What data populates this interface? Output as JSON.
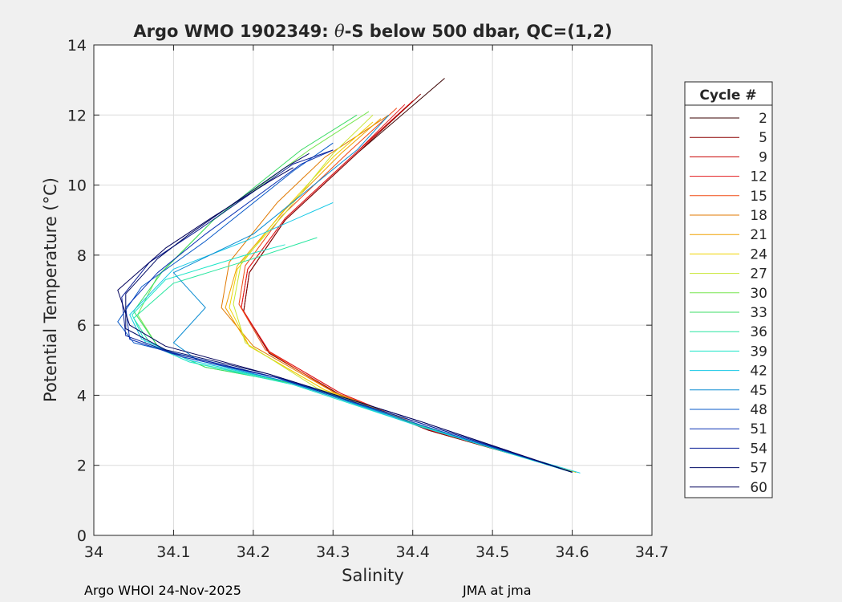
{
  "chart_data": {
    "type": "line",
    "title_pre": "Argo WMO 1902349: ",
    "title_theta": "θ",
    "title_post": "-S below 500 dbar,  QC=(1,2)",
    "xlabel": "Salinity",
    "ylabel": "Potential Temperature (°C)",
    "xlim": [
      34.0,
      34.7
    ],
    "ylim": [
      0,
      14
    ],
    "xticks": [
      "34",
      "34.1",
      "34.2",
      "34.3",
      "34.4",
      "34.5",
      "34.6",
      "34.7"
    ],
    "xtick_values": [
      34.0,
      34.1,
      34.2,
      34.3,
      34.4,
      34.5,
      34.6,
      34.7
    ],
    "yticks": [
      "0",
      "2",
      "4",
      "6",
      "8",
      "10",
      "12",
      "14"
    ],
    "ytick_values": [
      0,
      2,
      4,
      6,
      8,
      10,
      12,
      14
    ],
    "grid": true,
    "legend": {
      "title": "Cycle #",
      "placement": "right",
      "entries": [
        "2",
        "5",
        "9",
        "12",
        "15",
        "18",
        "21",
        "24",
        "27",
        "30",
        "33",
        "36",
        "39",
        "42",
        "45",
        "48",
        "51",
        "54",
        "57",
        "60"
      ],
      "colors": [
        "#3a0000",
        "#8b0000",
        "#c80000",
        "#e31a1c",
        "#f04a14",
        "#e07800",
        "#f0a000",
        "#f0d200",
        "#c8e632",
        "#78e650",
        "#3cdc64",
        "#28e6a0",
        "#1ee6c8",
        "#14c8e6",
        "#0a8cd2",
        "#0a5ac8",
        "#0a32b4",
        "#0a1e96",
        "#000a64",
        "#00005a"
      ]
    },
    "series": [
      {
        "name": "2",
        "color": "#3a0000",
        "points": [
          [
            34.605,
            1.8
          ],
          [
            34.42,
            3.0
          ],
          [
            34.31,
            4.0
          ],
          [
            34.22,
            5.2
          ],
          [
            34.188,
            6.4
          ],
          [
            34.195,
            7.5
          ],
          [
            34.24,
            9.0
          ],
          [
            34.33,
            10.9
          ],
          [
            34.44,
            13.05
          ]
        ]
      },
      {
        "name": "5",
        "color": "#8b0000",
        "points": [
          [
            34.605,
            1.8
          ],
          [
            34.42,
            3.0
          ],
          [
            34.31,
            4.0
          ],
          [
            34.22,
            5.2
          ],
          [
            34.188,
            6.4
          ],
          [
            34.195,
            7.5
          ],
          [
            34.24,
            9.0
          ],
          [
            34.33,
            10.9
          ],
          [
            34.41,
            12.6
          ]
        ]
      },
      {
        "name": "9",
        "color": "#c80000",
        "points": [
          [
            34.605,
            1.8
          ],
          [
            34.42,
            3.02
          ],
          [
            34.31,
            4.05
          ],
          [
            34.22,
            5.25
          ],
          [
            34.185,
            6.5
          ],
          [
            34.193,
            7.6
          ],
          [
            34.24,
            9.05
          ],
          [
            34.33,
            10.95
          ],
          [
            34.4,
            12.4
          ]
        ]
      },
      {
        "name": "12",
        "color": "#e31a1c",
        "points": [
          [
            34.605,
            1.8
          ],
          [
            34.42,
            3.02
          ],
          [
            34.31,
            4.05
          ],
          [
            34.22,
            5.25
          ],
          [
            34.185,
            6.5
          ],
          [
            34.193,
            7.6
          ],
          [
            34.24,
            9.05
          ],
          [
            34.33,
            10.95
          ],
          [
            34.39,
            12.3
          ]
        ]
      },
      {
        "name": "15",
        "color": "#f04a14",
        "points": [
          [
            34.605,
            1.8
          ],
          [
            34.42,
            3.05
          ],
          [
            34.3,
            4.1
          ],
          [
            34.215,
            5.3
          ],
          [
            34.182,
            6.6
          ],
          [
            34.19,
            7.7
          ],
          [
            34.235,
            9.1
          ],
          [
            34.32,
            10.95
          ],
          [
            34.38,
            12.2
          ]
        ]
      },
      {
        "name": "18",
        "color": "#e07800",
        "points": [
          [
            34.605,
            1.8
          ],
          [
            34.42,
            3.05
          ],
          [
            34.3,
            4.1
          ],
          [
            34.2,
            5.4
          ],
          [
            34.16,
            6.5
          ],
          [
            34.17,
            7.8
          ],
          [
            34.23,
            9.5
          ],
          [
            34.29,
            10.8
          ],
          [
            34.37,
            12.0
          ]
        ]
      },
      {
        "name": "21",
        "color": "#f0a000",
        "points": [
          [
            34.605,
            1.8
          ],
          [
            34.42,
            3.05
          ],
          [
            34.29,
            4.15
          ],
          [
            34.195,
            5.4
          ],
          [
            34.165,
            6.5
          ],
          [
            34.18,
            7.7
          ],
          [
            34.24,
            9.3
          ],
          [
            34.31,
            10.9
          ],
          [
            34.36,
            11.9
          ]
        ]
      },
      {
        "name": "24",
        "color": "#f0d200",
        "points": [
          [
            34.605,
            1.8
          ],
          [
            34.42,
            3.05
          ],
          [
            34.29,
            4.15
          ],
          [
            34.195,
            5.4
          ],
          [
            34.17,
            6.5
          ],
          [
            34.18,
            7.6
          ],
          [
            34.235,
            9.2
          ],
          [
            34.3,
            10.8
          ],
          [
            34.35,
            11.8
          ]
        ]
      },
      {
        "name": "27",
        "color": "#c8e632",
        "points": [
          [
            34.605,
            1.8
          ],
          [
            34.42,
            3.05
          ],
          [
            34.28,
            4.2
          ],
          [
            34.19,
            5.5
          ],
          [
            34.175,
            6.6
          ],
          [
            34.185,
            7.8
          ],
          [
            34.24,
            9.2
          ],
          [
            34.3,
            10.9
          ],
          [
            34.35,
            12.0
          ]
        ]
      },
      {
        "name": "30",
        "color": "#78e650",
        "points": [
          [
            34.6,
            1.8
          ],
          [
            34.42,
            3.05
          ],
          [
            34.27,
            4.25
          ],
          [
            34.14,
            4.8
          ],
          [
            34.08,
            5.4
          ],
          [
            34.055,
            6.3
          ],
          [
            34.08,
            7.4
          ],
          [
            34.15,
            9.0
          ],
          [
            34.27,
            11.0
          ],
          [
            34.345,
            12.1
          ]
        ]
      },
      {
        "name": "33",
        "color": "#3cdc64",
        "points": [
          [
            34.6,
            1.8
          ],
          [
            34.42,
            3.05
          ],
          [
            34.27,
            4.25
          ],
          [
            34.14,
            4.8
          ],
          [
            34.08,
            5.4
          ],
          [
            34.05,
            6.4
          ],
          [
            34.085,
            7.5
          ],
          [
            34.15,
            9.0
          ],
          [
            34.26,
            11.0
          ],
          [
            34.33,
            12.0
          ]
        ]
      },
      {
        "name": "36",
        "color": "#28e6a0",
        "points": [
          [
            34.6,
            1.8
          ],
          [
            34.42,
            3.05
          ],
          [
            34.26,
            4.3
          ],
          [
            34.13,
            4.9
          ],
          [
            34.07,
            5.5
          ],
          [
            34.05,
            6.2
          ],
          [
            34.1,
            7.2
          ],
          [
            34.2,
            7.9
          ],
          [
            34.28,
            8.5
          ]
        ]
      },
      {
        "name": "39",
        "color": "#1ee6c8",
        "points": [
          [
            34.6,
            1.8
          ],
          [
            34.41,
            3.1
          ],
          [
            34.25,
            4.3
          ],
          [
            34.12,
            4.95
          ],
          [
            34.065,
            5.5
          ],
          [
            34.048,
            6.3
          ],
          [
            34.09,
            7.3
          ],
          [
            34.19,
            8.0
          ],
          [
            34.24,
            8.3
          ]
        ]
      },
      {
        "name": "42",
        "color": "#14c8e6",
        "points": [
          [
            34.61,
            1.78
          ],
          [
            34.41,
            3.1
          ],
          [
            34.25,
            4.35
          ],
          [
            34.12,
            5.0
          ],
          [
            34.06,
            5.6
          ],
          [
            34.045,
            6.3
          ],
          [
            34.1,
            7.6
          ],
          [
            34.19,
            8.4
          ],
          [
            34.3,
            9.5
          ]
        ]
      },
      {
        "name": "45",
        "color": "#0a8cd2",
        "points": [
          [
            34.6,
            1.8
          ],
          [
            34.41,
            3.15
          ],
          [
            34.24,
            4.4
          ],
          [
            34.13,
            5.0
          ],
          [
            34.1,
            5.5
          ],
          [
            34.14,
            6.5
          ],
          [
            34.1,
            7.5
          ],
          [
            34.2,
            8.6
          ],
          [
            34.33,
            11.0
          ],
          [
            34.37,
            12.0
          ]
        ]
      },
      {
        "name": "48",
        "color": "#0a5ac8",
        "points": [
          [
            34.6,
            1.8
          ],
          [
            34.41,
            3.15
          ],
          [
            34.24,
            4.45
          ],
          [
            34.12,
            5.1
          ],
          [
            34.05,
            5.5
          ],
          [
            34.03,
            6.1
          ],
          [
            34.06,
            7.1
          ],
          [
            34.14,
            8.4
          ],
          [
            34.25,
            10.4
          ],
          [
            34.3,
            11.2
          ]
        ]
      },
      {
        "name": "51",
        "color": "#0a32b4",
        "points": [
          [
            34.6,
            1.8
          ],
          [
            34.41,
            3.2
          ],
          [
            34.23,
            4.5
          ],
          [
            34.11,
            5.1
          ],
          [
            34.045,
            5.6
          ],
          [
            34.04,
            6.5
          ],
          [
            34.08,
            7.5
          ],
          [
            34.14,
            8.6
          ],
          [
            34.26,
            10.6
          ],
          [
            34.3,
            11.0
          ]
        ]
      },
      {
        "name": "54",
        "color": "#0a1e96",
        "points": [
          [
            34.6,
            1.8
          ],
          [
            34.41,
            3.2
          ],
          [
            34.23,
            4.5
          ],
          [
            34.1,
            5.2
          ],
          [
            34.04,
            5.7
          ],
          [
            34.035,
            6.8
          ],
          [
            34.07,
            7.8
          ],
          [
            34.13,
            8.7
          ],
          [
            34.25,
            10.6
          ],
          [
            34.3,
            11.0
          ]
        ]
      },
      {
        "name": "57",
        "color": "#000a64",
        "points": [
          [
            34.6,
            1.8
          ],
          [
            34.41,
            3.25
          ],
          [
            34.22,
            4.6
          ],
          [
            34.09,
            5.3
          ],
          [
            34.04,
            5.9
          ],
          [
            34.04,
            6.9
          ],
          [
            34.08,
            7.9
          ],
          [
            34.12,
            8.6
          ],
          [
            34.24,
            10.5
          ],
          [
            34.27,
            10.9
          ]
        ]
      },
      {
        "name": "60",
        "color": "#00005a",
        "points": [
          [
            34.6,
            1.8
          ],
          [
            34.41,
            3.25
          ],
          [
            34.22,
            4.6
          ],
          [
            34.09,
            5.4
          ],
          [
            34.045,
            6.0
          ],
          [
            34.03,
            7.0
          ],
          [
            34.09,
            8.2
          ],
          [
            34.15,
            9.1
          ],
          [
            34.22,
            10.1
          ],
          [
            34.25,
            10.5
          ]
        ]
      }
    ]
  },
  "footer": {
    "left": "Argo WHOI 24-Nov-2025",
    "right": "JMA at jma"
  }
}
